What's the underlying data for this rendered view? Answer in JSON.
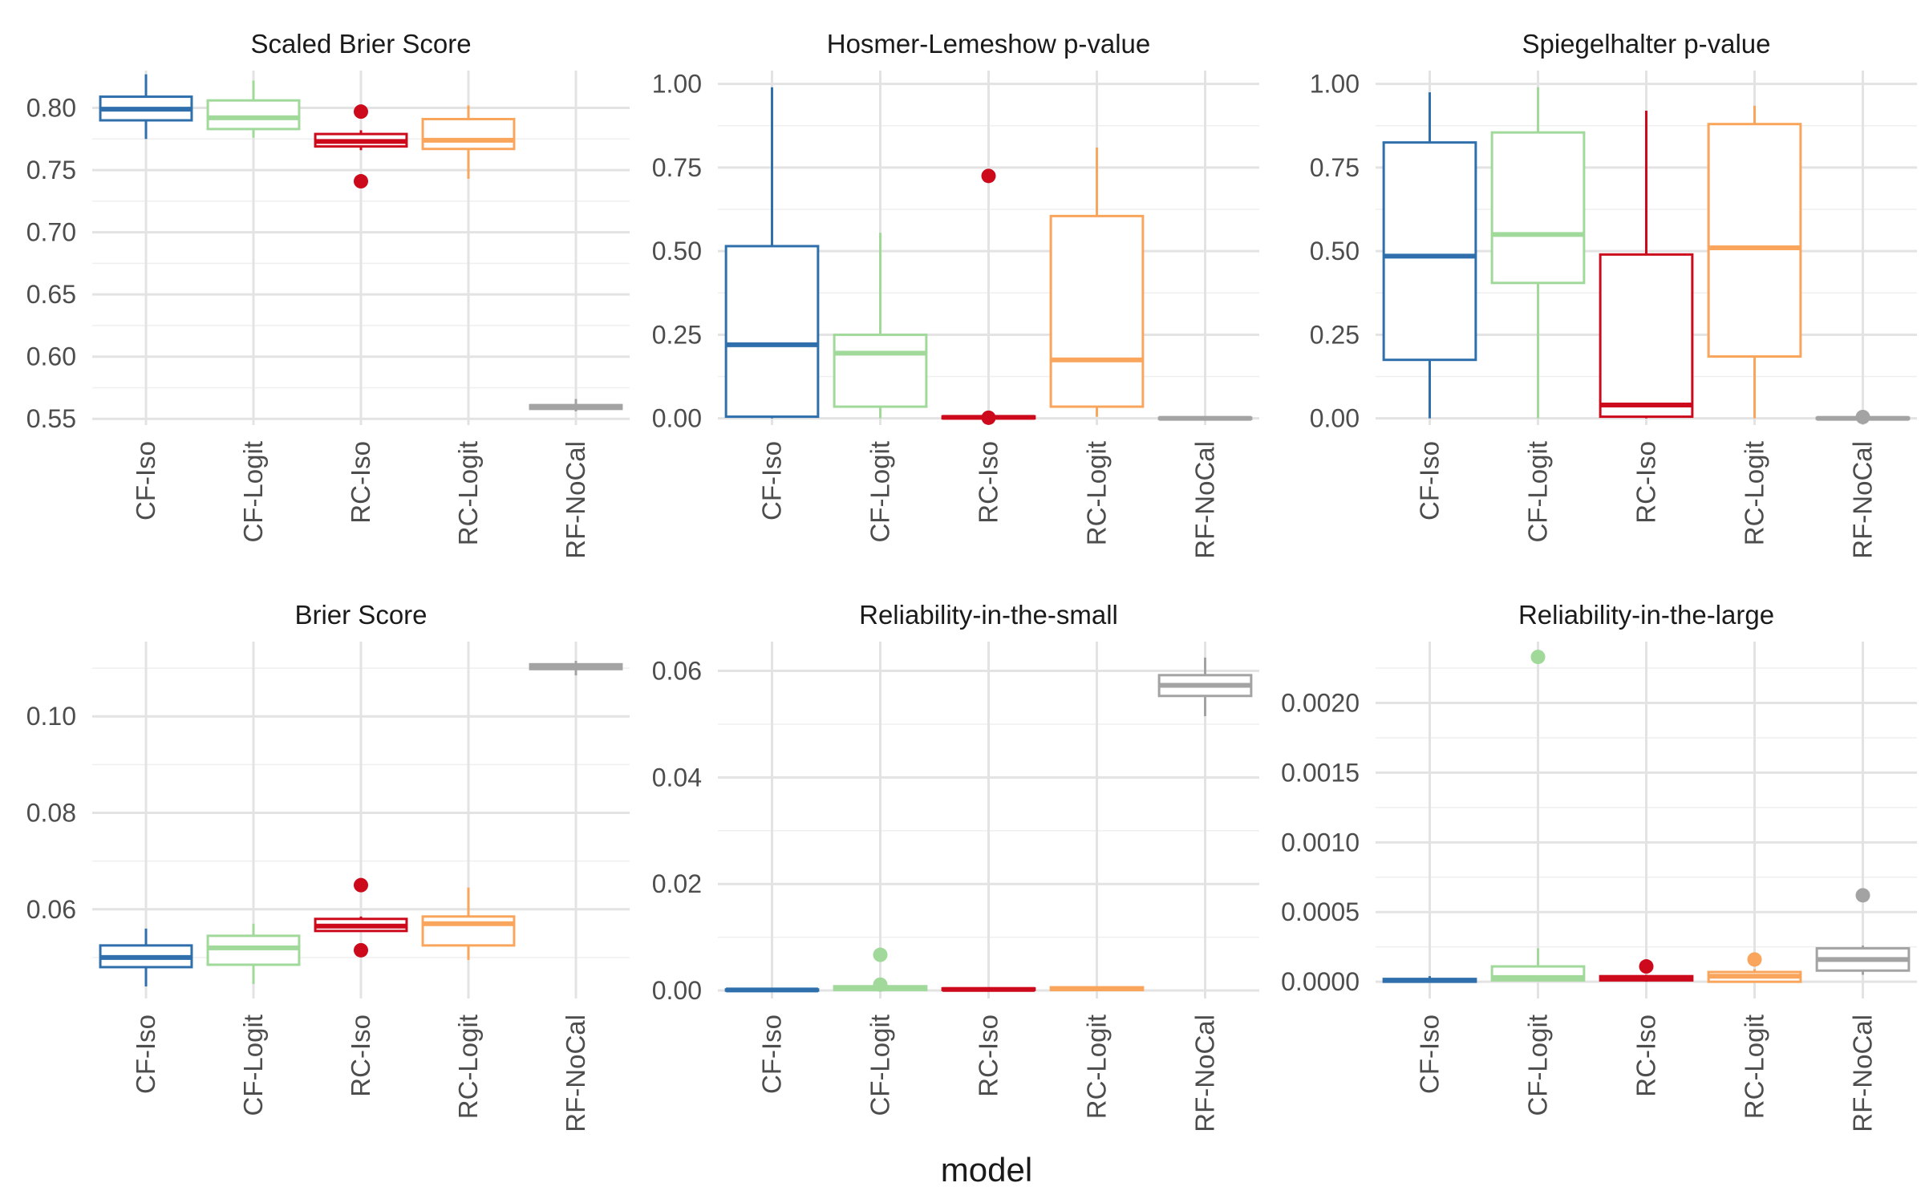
{
  "figure": {
    "xlabel": "model"
  },
  "colors": {
    "CF-Iso": "#2e6fac",
    "CF-Logit": "#a1d99b",
    "RC-Iso": "#cc0a1c",
    "RC-Logit": "#f9a55c",
    "RF-NoCal": "#a3a3a3",
    "grid_major": "#e3e3e3",
    "grid_minor": "#efefef",
    "text": "#1a1a1a"
  },
  "chart_data": [
    {
      "type": "boxplot",
      "title": "Scaled Brier Score",
      "categories": [
        "CF-Iso",
        "CF-Logit",
        "RC-Iso",
        "RC-Logit",
        "RF-NoCal"
      ],
      "ylim": [
        0.545,
        0.83
      ],
      "yticks": [
        0.55,
        0.6,
        0.65,
        0.7,
        0.75,
        0.8
      ],
      "ytick_labels": [
        "0.55",
        "0.60",
        "0.65",
        "0.70",
        "0.75",
        "0.80"
      ],
      "grid": true,
      "boxes": [
        {
          "name": "CF-Iso",
          "lower_whisker": 0.775,
          "q1": 0.79,
          "median": 0.799,
          "q3": 0.809,
          "upper_whisker": 0.827,
          "outliers": []
        },
        {
          "name": "CF-Logit",
          "lower_whisker": 0.776,
          "q1": 0.783,
          "median": 0.792,
          "q3": 0.806,
          "upper_whisker": 0.822,
          "outliers": []
        },
        {
          "name": "RC-Iso",
          "lower_whisker": 0.766,
          "q1": 0.769,
          "median": 0.773,
          "q3": 0.779,
          "upper_whisker": 0.782,
          "outliers": [
            0.797,
            0.741
          ]
        },
        {
          "name": "RC-Logit",
          "lower_whisker": 0.743,
          "q1": 0.767,
          "median": 0.774,
          "q3": 0.791,
          "upper_whisker": 0.802,
          "outliers": []
        },
        {
          "name": "RF-NoCal",
          "lower_whisker": 0.556,
          "q1": 0.558,
          "median": 0.56,
          "q3": 0.561,
          "upper_whisker": 0.566,
          "outliers": []
        }
      ]
    },
    {
      "type": "boxplot",
      "title": "Hosmer-Lemeshow p-value",
      "categories": [
        "CF-Iso",
        "CF-Logit",
        "RC-Iso",
        "RC-Logit",
        "RF-NoCal"
      ],
      "ylim": [
        -0.02,
        1.04
      ],
      "yticks": [
        0.0,
        0.25,
        0.5,
        0.75,
        1.0
      ],
      "ytick_labels": [
        "0.00",
        "0.25",
        "0.50",
        "0.75",
        "1.00"
      ],
      "grid": true,
      "boxes": [
        {
          "name": "CF-Iso",
          "lower_whisker": 0.0,
          "q1": 0.005,
          "median": 0.22,
          "q3": 0.515,
          "upper_whisker": 0.99,
          "outliers": []
        },
        {
          "name": "CF-Logit",
          "lower_whisker": 0.0,
          "q1": 0.035,
          "median": 0.195,
          "q3": 0.25,
          "upper_whisker": 0.555,
          "outliers": []
        },
        {
          "name": "RC-Iso",
          "lower_whisker": 0.0,
          "q1": 0.0,
          "median": 0.003,
          "q3": 0.006,
          "upper_whisker": 0.008,
          "outliers": [
            0.725,
            0.002
          ]
        },
        {
          "name": "RC-Logit",
          "lower_whisker": 0.005,
          "q1": 0.035,
          "median": 0.175,
          "q3": 0.605,
          "upper_whisker": 0.81,
          "outliers": []
        },
        {
          "name": "RF-NoCal",
          "lower_whisker": 0.0,
          "q1": 0.0,
          "median": 0.0,
          "q3": 0.002,
          "upper_whisker": 0.002,
          "outliers": []
        }
      ]
    },
    {
      "type": "boxplot",
      "title": "Spiegelhalter p-value",
      "categories": [
        "CF-Iso",
        "CF-Logit",
        "RC-Iso",
        "RC-Logit",
        "RF-NoCal"
      ],
      "ylim": [
        -0.02,
        1.04
      ],
      "yticks": [
        0.0,
        0.25,
        0.5,
        0.75,
        1.0
      ],
      "ytick_labels": [
        "0.00",
        "0.25",
        "0.50",
        "0.75",
        "1.00"
      ],
      "grid": true,
      "boxes": [
        {
          "name": "CF-Iso",
          "lower_whisker": 0.0,
          "q1": 0.175,
          "median": 0.485,
          "q3": 0.825,
          "upper_whisker": 0.975,
          "outliers": []
        },
        {
          "name": "CF-Logit",
          "lower_whisker": 0.0,
          "q1": 0.405,
          "median": 0.55,
          "q3": 0.855,
          "upper_whisker": 0.99,
          "outliers": []
        },
        {
          "name": "RC-Iso",
          "lower_whisker": 0.0,
          "q1": 0.005,
          "median": 0.04,
          "q3": 0.49,
          "upper_whisker": 0.92,
          "outliers": []
        },
        {
          "name": "RC-Logit",
          "lower_whisker": 0.0,
          "q1": 0.185,
          "median": 0.51,
          "q3": 0.88,
          "upper_whisker": 0.935,
          "outliers": []
        },
        {
          "name": "RF-NoCal",
          "lower_whisker": 0.0,
          "q1": 0.0,
          "median": 0.0,
          "q3": 0.002,
          "upper_whisker": 0.002,
          "outliers": [
            0.004
          ]
        }
      ]
    },
    {
      "type": "boxplot",
      "title": "Brier Score",
      "categories": [
        "CF-Iso",
        "CF-Logit",
        "RC-Iso",
        "RC-Logit",
        "RF-NoCal"
      ],
      "ylim": [
        0.0415,
        0.1155
      ],
      "yticks": [
        0.06,
        0.08,
        0.1
      ],
      "ytick_labels": [
        "0.06",
        "0.08",
        "0.10"
      ],
      "minor_yticks": [
        0.05,
        0.07,
        0.09,
        0.11
      ],
      "grid": true,
      "boxes": [
        {
          "name": "CF-Iso",
          "lower_whisker": 0.044,
          "q1": 0.048,
          "median": 0.05,
          "q3": 0.0525,
          "upper_whisker": 0.056,
          "outliers": []
        },
        {
          "name": "CF-Logit",
          "lower_whisker": 0.0445,
          "q1": 0.0485,
          "median": 0.052,
          "q3": 0.0545,
          "upper_whisker": 0.057,
          "outliers": []
        },
        {
          "name": "RC-Iso",
          "lower_whisker": 0.0553,
          "q1": 0.0555,
          "median": 0.0565,
          "q3": 0.058,
          "upper_whisker": 0.0585,
          "outliers": [
            0.065,
            0.0515
          ]
        },
        {
          "name": "RC-Logit",
          "lower_whisker": 0.0495,
          "q1": 0.0525,
          "median": 0.057,
          "q3": 0.0585,
          "upper_whisker": 0.0645,
          "outliers": []
        },
        {
          "name": "RF-NoCal",
          "lower_whisker": 0.1085,
          "q1": 0.1098,
          "median": 0.1102,
          "q3": 0.1108,
          "upper_whisker": 0.1115,
          "outliers": []
        }
      ]
    },
    {
      "type": "boxplot",
      "title": "Reliability-in-the-small",
      "categories": [
        "CF-Iso",
        "CF-Logit",
        "RC-Iso",
        "RC-Logit",
        "RF-NoCal"
      ],
      "ylim": [
        -0.0015,
        0.0655
      ],
      "yticks": [
        0.0,
        0.02,
        0.04,
        0.06
      ],
      "ytick_labels": [
        "0.00",
        "0.02",
        "0.04",
        "0.06"
      ],
      "minor_yticks": [
        0.01,
        0.03,
        0.05
      ],
      "grid": true,
      "boxes": [
        {
          "name": "CF-Iso",
          "lower_whisker": 0.0,
          "q1": 0.0,
          "median": 0.0001,
          "q3": 0.0002,
          "upper_whisker": 0.0003,
          "outliers": []
        },
        {
          "name": "CF-Logit",
          "lower_whisker": 0.0,
          "q1": 0.0001,
          "median": 0.0004,
          "q3": 0.0008,
          "upper_whisker": 0.0015,
          "outliers": [
            0.0067,
            0.0011
          ]
        },
        {
          "name": "RC-Iso",
          "lower_whisker": 0.0,
          "q1": 0.0001,
          "median": 0.0002,
          "q3": 0.0004,
          "upper_whisker": 0.0005,
          "outliers": []
        },
        {
          "name": "RC-Logit",
          "lower_whisker": 0.0,
          "q1": 0.0001,
          "median": 0.0003,
          "q3": 0.0006,
          "upper_whisker": 0.0008,
          "outliers": []
        },
        {
          "name": "RF-NoCal",
          "lower_whisker": 0.0515,
          "q1": 0.0553,
          "median": 0.0573,
          "q3": 0.0592,
          "upper_whisker": 0.0625,
          "outliers": []
        }
      ]
    },
    {
      "type": "boxplot",
      "title": "Reliability-in-the-large",
      "categories": [
        "CF-Iso",
        "CF-Logit",
        "RC-Iso",
        "RC-Logit",
        "RF-NoCal"
      ],
      "ylim": [
        -0.00012,
        0.00244
      ],
      "yticks": [
        0.0,
        0.0005,
        0.001,
        0.0015,
        0.002
      ],
      "ytick_labels": [
        "0.0000",
        "0.0005",
        "0.0010",
        "0.0015",
        "0.0020"
      ],
      "minor_yticks": [
        0.00025,
        0.00075,
        0.00125,
        0.00175,
        0.00225
      ],
      "grid": true,
      "boxes": [
        {
          "name": "CF-Iso",
          "lower_whisker": 0.0,
          "q1": 0.0,
          "median": 1e-05,
          "q3": 2e-05,
          "upper_whisker": 4e-05,
          "outliers": []
        },
        {
          "name": "CF-Logit",
          "lower_whisker": 0.0,
          "q1": 1e-05,
          "median": 3e-05,
          "q3": 0.00011,
          "upper_whisker": 0.00024,
          "outliers": [
            0.00233
          ]
        },
        {
          "name": "RC-Iso",
          "lower_whisker": 0.0,
          "q1": 1e-05,
          "median": 2e-05,
          "q3": 4e-05,
          "upper_whisker": 5e-05,
          "outliers": [
            0.00011
          ]
        },
        {
          "name": "RC-Logit",
          "lower_whisker": 0.0,
          "q1": 0.0,
          "median": 4e-05,
          "q3": 7e-05,
          "upper_whisker": 9e-05,
          "outliers": [
            0.00016
          ]
        },
        {
          "name": "RF-NoCal",
          "lower_whisker": 5e-05,
          "q1": 8e-05,
          "median": 0.00016,
          "q3": 0.00024,
          "upper_whisker": 0.00026,
          "outliers": [
            0.00062
          ]
        }
      ]
    }
  ]
}
